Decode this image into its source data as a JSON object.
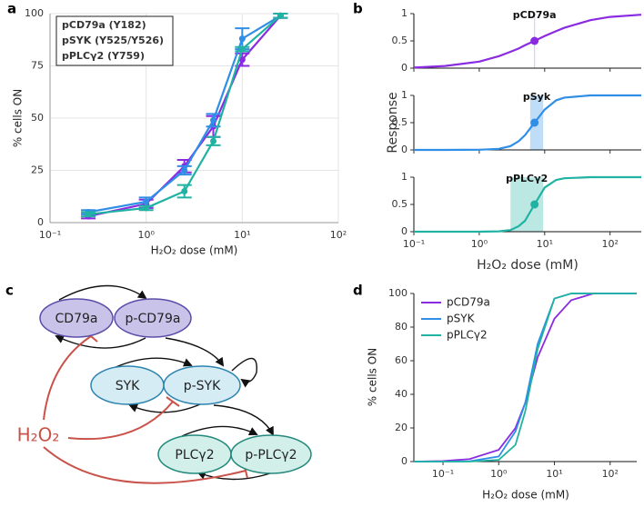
{
  "chart_data": [
    {
      "type": "errorbar",
      "panel_label": "a",
      "xlabel": "H₂O₂ dose (mM)",
      "ylabel": "% cells ON",
      "log_x": true,
      "grid": true,
      "legend": "upper left",
      "xlim": [
        0.1,
        100
      ],
      "xticks": [
        {
          "value": 0.1,
          "label": "10⁻¹"
        },
        {
          "value": 1,
          "label": "10⁰"
        },
        {
          "value": 10,
          "label": "10¹"
        },
        {
          "value": 100,
          "label": "10²"
        }
      ],
      "ylim": [
        0,
        100
      ],
      "yticks": [
        0,
        25,
        50,
        75,
        100
      ],
      "x": [
        0.25,
        1,
        2.5,
        5,
        10,
        25
      ],
      "series": [
        {
          "name": "pCD79a (Y182)",
          "color": "#8a2be2",
          "values": [
            3,
            9,
            27,
            46,
            78,
            99
          ],
          "errors": [
            1,
            2,
            3,
            5,
            3,
            1
          ]
        },
        {
          "name": "pSYK (Y525/Y526)",
          "color": "#2f8ee6",
          "values": [
            5,
            10,
            25,
            49,
            88,
            99
          ],
          "errors": [
            1,
            2,
            2,
            3,
            5,
            1
          ]
        },
        {
          "name": "pPLCγ2 (Y759)",
          "color": "#20b2a2",
          "values": [
            4,
            7,
            15,
            39,
            83,
            99
          ],
          "errors": [
            1,
            1,
            3,
            2,
            1,
            1
          ]
        }
      ]
    },
    {
      "type": "response",
      "panel_label": "b",
      "xlabel": "H₂O₂ dose (mM)",
      "ylabel": "Response",
      "log_x": true,
      "xlim": [
        0.1,
        300
      ],
      "xticks": [
        {
          "value": 0.1,
          "label": "10⁻¹"
        },
        {
          "value": 1,
          "label": "10⁰"
        },
        {
          "value": 10,
          "label": "10¹"
        },
        {
          "value": 100,
          "label": "10²"
        }
      ],
      "ylim": [
        0,
        1
      ],
      "yticks": [
        0,
        0.5,
        1
      ],
      "x": [
        0.1,
        0.3,
        1,
        2,
        3,
        4,
        5,
        7,
        10,
        15,
        20,
        50,
        100,
        300
      ],
      "series": [
        {
          "name": "pCD79a",
          "color": "#8a2be2",
          "values": [
            0.01,
            0.04,
            0.12,
            0.22,
            0.3,
            0.36,
            0.42,
            0.5,
            0.59,
            0.68,
            0.74,
            0.88,
            0.94,
            0.98
          ],
          "marker_x": 7,
          "marker_y": 0.5,
          "band": [
            6.9,
            7.1
          ]
        },
        {
          "name": "pSyk",
          "color": "#2f8ee6",
          "values": [
            0,
            0,
            0.003,
            0.02,
            0.07,
            0.16,
            0.27,
            0.5,
            0.74,
            0.91,
            0.96,
            1,
            1,
            1
          ],
          "marker_x": 7,
          "marker_y": 0.5,
          "band": [
            6,
            9.5
          ]
        },
        {
          "name": "pPLCγ2",
          "color": "#20b2a2",
          "values": [
            0,
            0,
            0,
            0.006,
            0.03,
            0.1,
            0.2,
            0.5,
            0.81,
            0.95,
            0.98,
            1,
            1,
            1
          ],
          "marker_x": 7,
          "marker_y": 0.5,
          "band": [
            3,
            9.5
          ]
        }
      ]
    },
    {
      "type": "line",
      "panel_label": "d",
      "xlabel": "H₂O₂ dose (mM)",
      "ylabel": "% cells ON",
      "log_x": true,
      "legend": "upper left",
      "xlim": [
        0.03,
        300
      ],
      "xticks": [
        {
          "value": 0.1,
          "label": "10⁻¹"
        },
        {
          "value": 1,
          "label": "10⁰"
        },
        {
          "value": 10,
          "label": "10¹"
        },
        {
          "value": 100,
          "label": "10²"
        }
      ],
      "ylim": [
        0,
        100
      ],
      "yticks": [
        0,
        20,
        40,
        60,
        80,
        100
      ],
      "x": [
        0.03,
        0.1,
        0.3,
        1,
        2,
        3,
        5,
        10,
        20,
        50,
        100,
        300
      ],
      "series": [
        {
          "name": "pCD79a",
          "color": "#8a2be2",
          "values": [
            0,
            0.3,
            1.5,
            7,
            20,
            35,
            62,
            85,
            96,
            100,
            100,
            100
          ]
        },
        {
          "name": "pSYK",
          "color": "#2f8ee6",
          "values": [
            0,
            0,
            0.2,
            3,
            18,
            35,
            70,
            97,
            100,
            100,
            100,
            100
          ]
        },
        {
          "name": "pPLCγ2",
          "color": "#20b2a2",
          "values": [
            0,
            0,
            0,
            1,
            10,
            30,
            67,
            97,
            100,
            100,
            100,
            100
          ]
        }
      ]
    }
  ],
  "diagram": {
    "panel_label": "c",
    "stimulus": "H₂O₂",
    "nodes": [
      {
        "label": "CD79a"
      },
      {
        "label": "p-CD79a"
      },
      {
        "label": "SYK"
      },
      {
        "label": "p-SYK"
      },
      {
        "label": "PLCγ2"
      },
      {
        "label": "p-PLCγ2"
      }
    ]
  }
}
